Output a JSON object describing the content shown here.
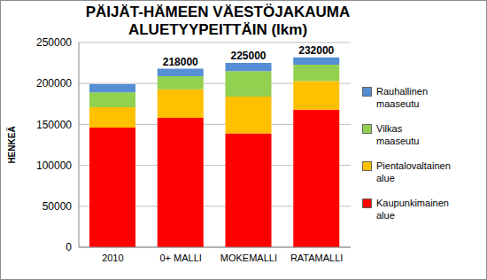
{
  "chart_data": {
    "type": "bar",
    "title": "PÄIJÄT-HÄMEEN VÄESTÖJAKAUMA ALUETYYPEITTÄIN (lkm)",
    "y_label": "HENKEÄ",
    "categories": [
      "2010",
      "0+ MALLI",
      "MOKEMALLI",
      "RATAMALLI"
    ],
    "stacked": true,
    "grid": true,
    "legend": "right",
    "ylim": [
      0,
      250000
    ],
    "yticks": [
      0,
      50000,
      100000,
      150000,
      200000,
      250000
    ],
    "series": [
      {
        "name": "Kaupunkimainen alue",
        "color": "#ff0000",
        "values": [
          146000,
          158000,
          139000,
          168000
        ]
      },
      {
        "name": "Pientalovaltainen alue",
        "color": "#ffc000",
        "values": [
          25000,
          35000,
          45000,
          35000
        ]
      },
      {
        "name": "Vilkas maaseutu",
        "color": "#92d050",
        "values": [
          18000,
          16000,
          31000,
          20000
        ]
      },
      {
        "name": "Rauhallinen maaseutu",
        "color": "#558ed5",
        "values": [
          10000,
          9000,
          10000,
          9000
        ]
      }
    ],
    "totals": [
      null,
      218000,
      225000,
      232000
    ]
  }
}
